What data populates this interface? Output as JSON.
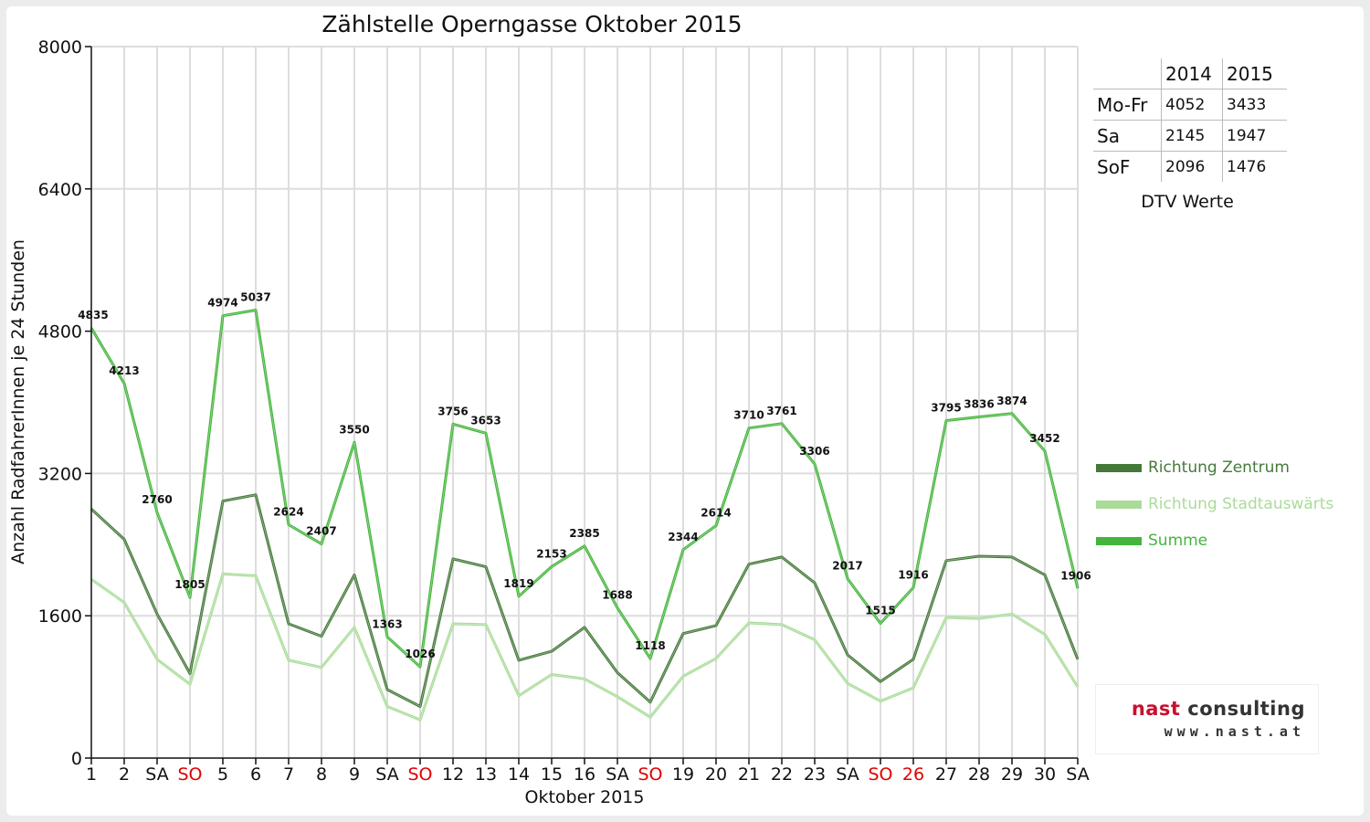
{
  "colors": {
    "zentrum": "#45793a",
    "stadtauswaerts": "#a9dc99",
    "summe": "#44b53c",
    "weekend_red": "#e00000",
    "grid": "#dddddd"
  },
  "dtv": {
    "years": [
      "2014",
      "2015"
    ],
    "rows": [
      {
        "label": "Mo-Fr",
        "v2014": "4052",
        "v2015": "3433"
      },
      {
        "label": "Sa",
        "v2014": "2145",
        "v2015": "1947"
      },
      {
        "label": "SoF",
        "v2014": "2096",
        "v2015": "1476"
      }
    ],
    "caption": "DTV Werte"
  },
  "logo": {
    "name_part1": "nast",
    "name_part2": "consulting",
    "url": "www.nast.at"
  },
  "chart_data": {
    "type": "line",
    "title": "Zählstelle Operngasse Oktober 2015",
    "xlabel": "Oktober 2015",
    "ylabel": "Anzahl RadfahrerInnen je 24 Stunden",
    "ylim": [
      0,
      8000
    ],
    "yticks": [
      0,
      1600,
      3200,
      4800,
      6400,
      8000
    ],
    "grid": true,
    "legend_position": "right",
    "categories": [
      "1",
      "2",
      "SA",
      "SO",
      "5",
      "6",
      "7",
      "8",
      "9",
      "SA",
      "SO",
      "12",
      "13",
      "14",
      "15",
      "16",
      "SA",
      "SO",
      "19",
      "20",
      "21",
      "22",
      "23",
      "SA",
      "SO",
      "26",
      "27",
      "28",
      "29",
      "30",
      "SA"
    ],
    "highlighted_categories": [
      3,
      10,
      17,
      24,
      25
    ],
    "series": [
      {
        "name": "Richtung Zentrum",
        "color": "#45793a",
        "values": [
          2800,
          2460,
          1620,
          950,
          2890,
          2960,
          1510,
          1370,
          2060,
          770,
          580,
          2240,
          2150,
          1100,
          1200,
          1470,
          960,
          630,
          1400,
          1490,
          2180,
          2260,
          1970,
          1160,
          860,
          1110,
          2220,
          2270,
          2260,
          2060,
          1110
        ]
      },
      {
        "name": "Richtung Stadtauswärts",
        "color": "#a9dc99",
        "values": [
          2010,
          1750,
          1110,
          830,
          2070,
          2050,
          1100,
          1020,
          1470,
          580,
          430,
          1510,
          1500,
          700,
          940,
          890,
          690,
          460,
          920,
          1120,
          1520,
          1500,
          1330,
          840,
          640,
          790,
          1580,
          1570,
          1620,
          1390,
          800
        ]
      },
      {
        "name": "Summe",
        "color": "#44b53c",
        "values": [
          4835,
          4213,
          2760,
          1805,
          4974,
          5037,
          2624,
          2407,
          3550,
          1363,
          1026,
          3756,
          3653,
          1819,
          2153,
          2385,
          1688,
          1118,
          2344,
          2614,
          3710,
          3761,
          3306,
          2017,
          1515,
          1916,
          3795,
          3836,
          3874,
          3452,
          1906
        ]
      }
    ],
    "data_labels_series": "Summe"
  }
}
